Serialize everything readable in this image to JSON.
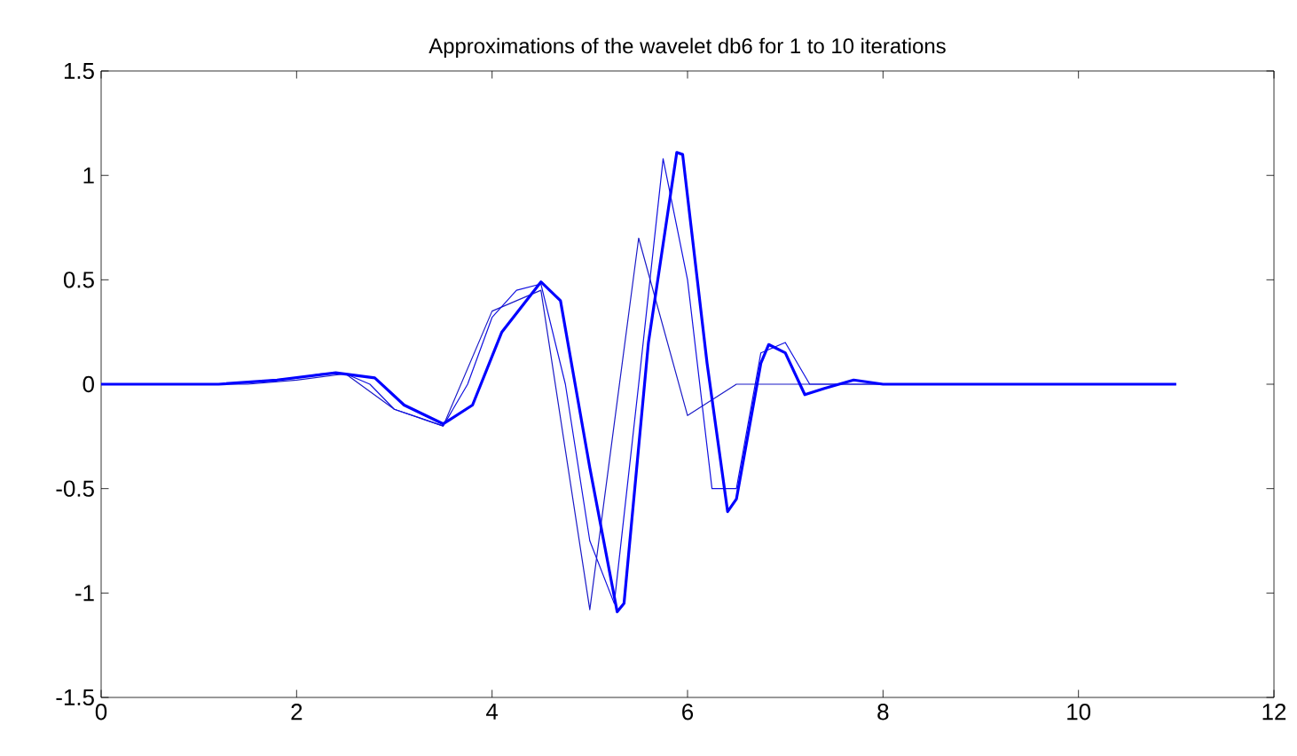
{
  "chart_data": {
    "type": "line",
    "title": "Approximations of the wavelet db6 for 1 to 10 iterations",
    "xlim": [
      0,
      12
    ],
    "ylim": [
      -1.5,
      1.5
    ],
    "xticks": [
      0,
      2,
      4,
      6,
      8,
      10,
      12
    ],
    "yticks": [
      -1.5,
      -1,
      -0.5,
      0,
      0.5,
      1,
      1.5
    ],
    "grid": false,
    "marker": "none",
    "line_style": "solid",
    "series": [
      {
        "color": "#1a1ac8",
        "x": [
          0,
          1.5,
          2,
          2.5,
          3,
          3.5,
          4,
          4.5,
          5,
          5.5,
          6,
          6.5,
          11
        ],
        "values": [
          0,
          0,
          0.02,
          0.05,
          -0.12,
          -0.2,
          0.35,
          0.45,
          -1.08,
          0.7,
          -0.15,
          0,
          0
        ]
      },
      {
        "color": "#1010e0",
        "x": [
          0,
          1.25,
          2,
          2.25,
          2.5,
          2.75,
          3,
          3.25,
          3.5,
          3.75,
          4,
          4.25,
          4.5,
          4.75,
          5,
          5.25,
          5.5,
          5.75,
          6,
          6.25,
          6.5,
          6.75,
          7,
          7.25,
          7.5,
          11
        ],
        "values": [
          0,
          0,
          0.03,
          0.05,
          0.05,
          0,
          -0.12,
          -0.16,
          -0.2,
          0,
          0.32,
          0.45,
          0.48,
          0,
          -0.75,
          -1.05,
          0,
          1.08,
          0.5,
          -0.5,
          -0.5,
          0.15,
          0.2,
          0,
          0,
          0
        ]
      },
      {
        "color": "#0000ff",
        "x": [
          0,
          1.2,
          1.8,
          2.4,
          2.8,
          3.1,
          3.5,
          3.8,
          4.1,
          4.5,
          4.7,
          5.0,
          5.28,
          5.35,
          5.6,
          5.89,
          5.95,
          6.2,
          6.41,
          6.5,
          6.75,
          6.83,
          7.0,
          7.2,
          7.4,
          7.7,
          8,
          11
        ],
        "values": [
          0,
          0,
          0.02,
          0.055,
          0.03,
          -0.1,
          -0.19,
          -0.1,
          0.25,
          0.49,
          0.4,
          -0.4,
          -1.09,
          -1.05,
          0.2,
          1.11,
          1.1,
          0.1,
          -0.61,
          -0.55,
          0.1,
          0.19,
          0.15,
          -0.05,
          -0.02,
          0.02,
          0,
          0
        ]
      }
    ]
  }
}
